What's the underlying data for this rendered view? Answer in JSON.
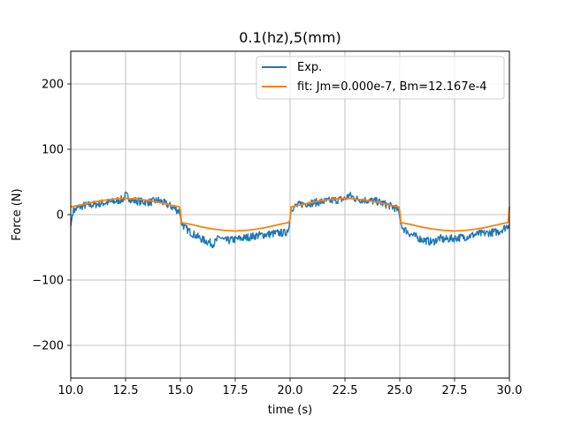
{
  "chart_data": {
    "type": "line",
    "title": "0.1(hz),5(mm)",
    "xlabel": "time (s)",
    "ylabel": "Force (N)",
    "xlim": [
      10.0,
      30.0
    ],
    "ylim": [
      -250,
      250
    ],
    "grid": true,
    "legend_position": "top-right",
    "x_ticks": [
      10.0,
      12.5,
      15.0,
      17.5,
      20.0,
      22.5,
      25.0,
      27.5,
      30.0
    ],
    "x_tick_labels": [
      "10.0",
      "12.5",
      "15.0",
      "17.5",
      "20.0",
      "22.5",
      "25.0",
      "27.5",
      "30.0"
    ],
    "y_ticks": [
      -200,
      -100,
      0,
      100,
      200
    ],
    "y_tick_labels": [
      "−200",
      "−100",
      "0",
      "100",
      "200"
    ],
    "series": [
      {
        "name": "Exp.",
        "color": "#1f77b4",
        "x": [
          10.0,
          10.1,
          10.3,
          10.6,
          11.0,
          11.5,
          12.0,
          12.4,
          12.5,
          12.8,
          13.2,
          13.6,
          14.0,
          14.5,
          14.8,
          14.95,
          15.05,
          15.2,
          15.5,
          16.0,
          16.5,
          16.8,
          17.0,
          17.5,
          18.0,
          18.5,
          19.0,
          19.5,
          19.8,
          19.95,
          20.05,
          20.2,
          20.5,
          21.0,
          21.5,
          22.0,
          22.5,
          22.7,
          23.0,
          23.5,
          24.0,
          24.5,
          24.8,
          24.95,
          25.05,
          25.2,
          25.5,
          26.0,
          26.5,
          26.8,
          27.0,
          27.5,
          28.0,
          28.5,
          29.0,
          29.5,
          29.8,
          29.95,
          30.0
        ],
        "values": [
          -18,
          5,
          10,
          14,
          15,
          18,
          20,
          24,
          30,
          22,
          20,
          19,
          22,
          14,
          8,
          5,
          -12,
          -20,
          -28,
          -38,
          -45,
          -34,
          -40,
          -38,
          -35,
          -32,
          -30,
          -28,
          -28,
          -20,
          10,
          12,
          16,
          18,
          20,
          22,
          24,
          30,
          24,
          22,
          20,
          14,
          10,
          6,
          -15,
          -22,
          -30,
          -38,
          -42,
          -36,
          -38,
          -36,
          -34,
          -30,
          -28,
          -26,
          -20,
          -16,
          -14
        ]
      },
      {
        "name": "fit: Jm=0.000e-7, Bm=12.167e-4",
        "color": "#ff7f0e",
        "x": [
          10.0,
          10.5,
          11.0,
          11.5,
          12.0,
          12.5,
          13.0,
          13.5,
          14.0,
          14.5,
          14.95,
          15.0,
          15.05,
          15.5,
          16.0,
          16.5,
          17.0,
          17.5,
          18.0,
          18.5,
          19.0,
          19.5,
          19.95,
          20.0,
          20.05,
          20.5,
          21.0,
          21.5,
          22.0,
          22.5,
          23.0,
          23.5,
          24.0,
          24.5,
          24.95,
          25.0,
          25.05,
          25.5,
          26.0,
          26.5,
          27.0,
          27.5,
          28.0,
          28.5,
          29.0,
          29.5,
          29.95,
          30.0
        ],
        "values": [
          12,
          15,
          19,
          22,
          24,
          25,
          24,
          22,
          19,
          15,
          12,
          6,
          -12,
          -15,
          -19,
          -22,
          -24,
          -25,
          -24,
          -22,
          -19,
          -15,
          -12,
          -6,
          12,
          15,
          19,
          22,
          24,
          25,
          24,
          22,
          19,
          15,
          12,
          6,
          -12,
          -15,
          -19,
          -22,
          -24,
          -25,
          -24,
          -22,
          -19,
          -15,
          -12,
          12
        ]
      }
    ]
  }
}
